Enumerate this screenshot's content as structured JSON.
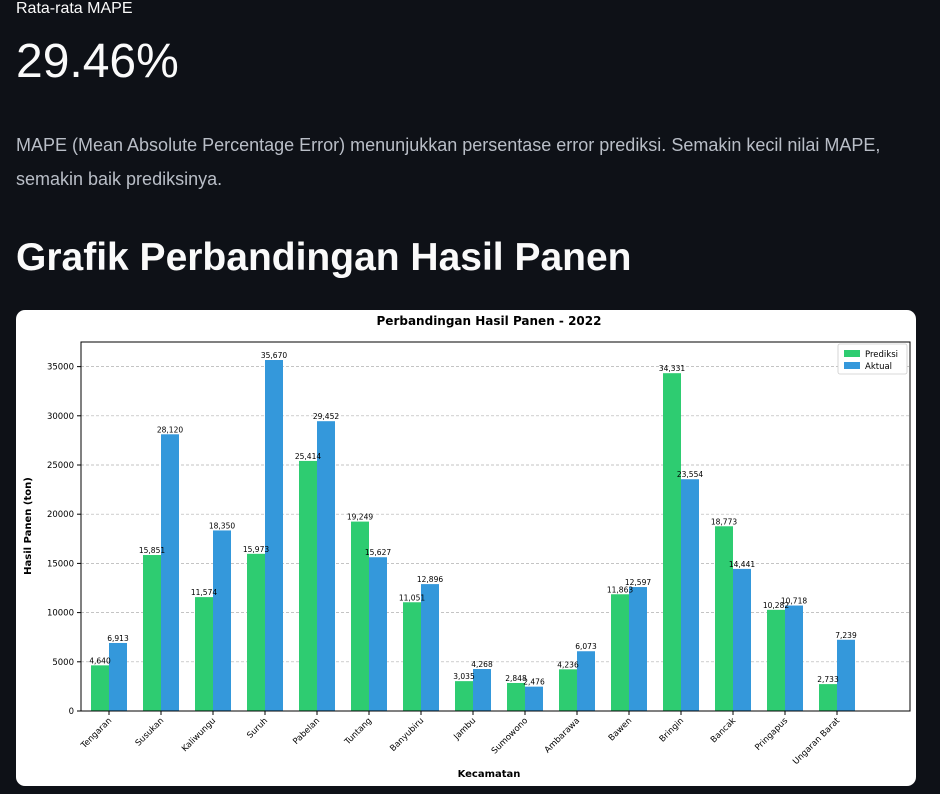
{
  "metric": {
    "label": "Rata-rata MAPE",
    "value": "29.46%"
  },
  "description": "MAPE (Mean Absolute Percentage Error) menunjukkan persentase error prediksi. Semakin kecil nilai MAPE, semakin baik prediksinya.",
  "section_title": "Grafik Perbandingan Hasil Panen",
  "chart_data": {
    "type": "bar",
    "title": "Perbandingan Hasil Panen - 2022",
    "xlabel": "Kecamatan",
    "ylabel": "Hasil Panen (ton)",
    "ylim": [
      0,
      37500
    ],
    "yticks": [
      0,
      5000,
      10000,
      15000,
      20000,
      25000,
      30000,
      35000
    ],
    "grid": "y-dashed",
    "legend_position": "top-right",
    "categories": [
      "Tengaran",
      "Susukan",
      "Kaliwungu",
      "Suruh",
      "Pabelan",
      "Tuntang",
      "Banyubiru",
      "Jambu",
      "Sumowono",
      "Ambarawa",
      "Bawen",
      "Bringin",
      "Bancak",
      "Pringapus",
      "Ungaran Barat"
    ],
    "series": [
      {
        "name": "Prediksi",
        "color": "#2ecc71",
        "values": [
          4640,
          15851,
          11574,
          15973,
          25414,
          19249,
          11051,
          3035,
          2848,
          4236,
          11863,
          34331,
          18773,
          10282,
          2733
        ],
        "labels": [
          "4,640",
          "15,851",
          "11,574",
          "15,973",
          "25,414",
          "19,249",
          "11,051",
          "3,035",
          "2,848",
          "4,236",
          "11,863",
          "34,331",
          "18,773",
          "10,282",
          "2,733"
        ]
      },
      {
        "name": "Aktual",
        "color": "#3498db",
        "values": [
          6913,
          28120,
          18350,
          35670,
          29452,
          15627,
          12896,
          4268,
          2476,
          6073,
          12597,
          23554,
          14441,
          10718,
          7239
        ],
        "labels": [
          "6,913",
          "28,120",
          "18,350",
          "35,670",
          "29,452",
          "15,627",
          "12,896",
          "4,268",
          "2,476",
          "6,073",
          "12,597",
          "23,554",
          "14,441",
          "10,718",
          "7,239"
        ]
      }
    ]
  }
}
